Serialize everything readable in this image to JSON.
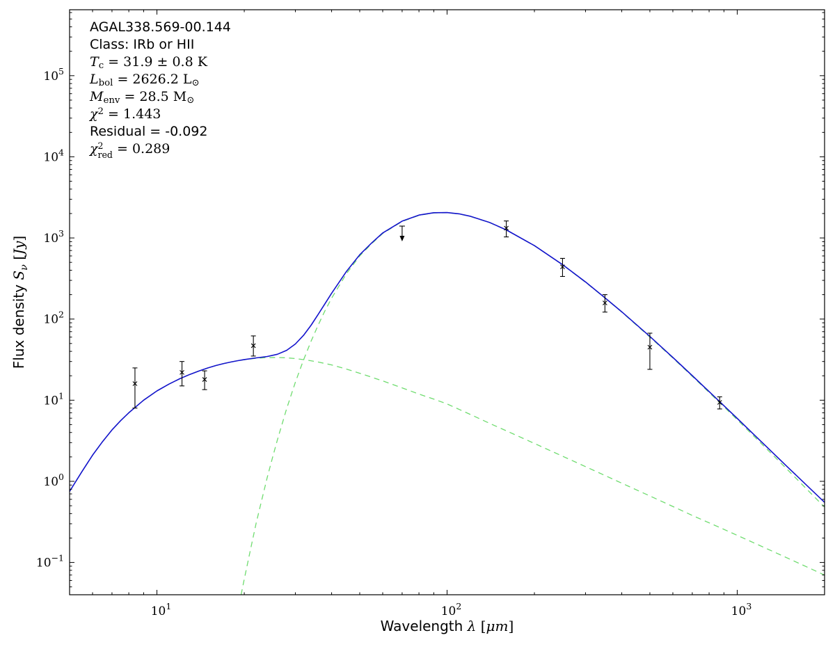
{
  "chart_data": {
    "type": "line",
    "source": "AGAL338.569-00.144",
    "x_scale": "log",
    "y_scale": "log",
    "grid": false,
    "legend": false,
    "frame_color": "#000000",
    "xlim": [
      5,
      2000
    ],
    "ylim": [
      0.04,
      650000
    ],
    "xlabel": {
      "text": "Wavelength λ [μm]",
      "segments": [
        {
          "t": "Wavelength ",
          "f": "sans"
        },
        {
          "t": "λ",
          "f": "it"
        },
        {
          "t": " [",
          "f": "rm"
        },
        {
          "t": "μm",
          "f": "it"
        },
        {
          "t": "]",
          "f": "rm"
        }
      ]
    },
    "ylabel": {
      "text": "Flux density Sν [Jy]",
      "segments": [
        {
          "t": "Flux density ",
          "f": "sans"
        },
        {
          "t": "S",
          "f": "it"
        },
        {
          "t": "ν",
          "f": "subit"
        },
        {
          "t": " [",
          "f": "rm"
        },
        {
          "t": "Jy",
          "f": "it"
        },
        {
          "t": "]",
          "f": "rm"
        }
      ]
    },
    "x_major_ticks": [
      {
        "value": 10,
        "exp": "1"
      },
      {
        "value": 100,
        "exp": "2"
      },
      {
        "value": 1000,
        "exp": "3"
      }
    ],
    "y_major_ticks": [
      {
        "value": 0.1,
        "exp": "−1"
      },
      {
        "value": 1,
        "exp": "0"
      },
      {
        "value": 10,
        "exp": "1"
      },
      {
        "value": 100,
        "exp": "2"
      },
      {
        "value": 1000,
        "exp": "3"
      },
      {
        "value": 10000,
        "exp": "4"
      },
      {
        "value": 100000,
        "exp": "5"
      }
    ],
    "series": [
      {
        "name": "total-fit",
        "color": "#1212cc",
        "style": "solid",
        "width": 1.6,
        "points": [
          [
            5,
            0.75
          ],
          [
            5.5,
            1.3
          ],
          [
            6,
            2.1
          ],
          [
            6.5,
            3.1
          ],
          [
            7,
            4.3
          ],
          [
            7.5,
            5.6
          ],
          [
            8,
            7.0
          ],
          [
            9,
            10.0
          ],
          [
            10,
            13.0
          ],
          [
            11,
            15.8
          ],
          [
            12,
            18.4
          ],
          [
            13,
            20.8
          ],
          [
            14,
            23.0
          ],
          [
            15,
            25.0
          ],
          [
            16,
            26.8
          ],
          [
            17,
            28.3
          ],
          [
            18,
            29.6
          ],
          [
            19,
            30.7
          ],
          [
            20,
            31.7
          ],
          [
            22,
            33.2
          ],
          [
            24,
            34.6
          ],
          [
            26,
            36.8
          ],
          [
            28,
            41.2
          ],
          [
            30,
            49.3
          ],
          [
            32,
            63
          ],
          [
            34,
            84
          ],
          [
            36,
            115
          ],
          [
            38,
            156
          ],
          [
            40,
            208
          ],
          [
            45,
            387
          ],
          [
            50,
            621
          ],
          [
            55,
            869
          ],
          [
            60,
            1151
          ],
          [
            70,
            1611
          ],
          [
            80,
            1912
          ],
          [
            90,
            2046
          ],
          [
            100,
            2056
          ],
          [
            110,
            1981
          ],
          [
            120,
            1854
          ],
          [
            140,
            1554
          ],
          [
            160,
            1257
          ],
          [
            200,
            805
          ],
          [
            250,
            469
          ],
          [
            300,
            287
          ],
          [
            350,
            183
          ],
          [
            400,
            123
          ],
          [
            500,
            61
          ],
          [
            600,
            33.6
          ],
          [
            700,
            20.1
          ],
          [
            870,
            9.6
          ],
          [
            1000,
            5.96
          ],
          [
            1200,
            3.18
          ],
          [
            1500,
            1.47
          ],
          [
            2000,
            0.55
          ]
        ]
      },
      {
        "name": "cold-dust-component",
        "color": "#6fdc6f",
        "style": "dashed",
        "width": 1.3,
        "points": [
          [
            19.5,
            0.04
          ],
          [
            20,
            0.062
          ],
          [
            21,
            0.143
          ],
          [
            22,
            0.31
          ],
          [
            23,
            0.6
          ],
          [
            24,
            1.12
          ],
          [
            25,
            1.94
          ],
          [
            26,
            3.23
          ],
          [
            28,
            7.9
          ],
          [
            30,
            16.7
          ],
          [
            32,
            31.3
          ],
          [
            34,
            53.5
          ],
          [
            36,
            85.3
          ],
          [
            38,
            128
          ],
          [
            40,
            181
          ],
          [
            45,
            363
          ],
          [
            50,
            600
          ],
          [
            55,
            850
          ],
          [
            60,
            1134
          ],
          [
            70,
            1597
          ],
          [
            80,
            1900
          ],
          [
            90,
            2036
          ],
          [
            100,
            2047
          ],
          [
            110,
            1973
          ],
          [
            120,
            1847
          ],
          [
            140,
            1549
          ],
          [
            160,
            1253
          ],
          [
            200,
            802
          ],
          [
            250,
            467
          ],
          [
            300,
            285
          ],
          [
            350,
            182
          ],
          [
            400,
            122
          ],
          [
            500,
            60
          ],
          [
            600,
            33.1
          ],
          [
            700,
            19.7
          ],
          [
            870,
            9.33
          ],
          [
            1000,
            5.74
          ],
          [
            1200,
            3.02
          ],
          [
            1500,
            1.36
          ],
          [
            2000,
            0.48
          ]
        ]
      },
      {
        "name": "warm-dust-component",
        "color": "#6fdc6f",
        "style": "dashed",
        "width": 1.3,
        "points": [
          [
            5,
            0.75
          ],
          [
            5.5,
            1.3
          ],
          [
            6,
            2.1
          ],
          [
            6.5,
            3.1
          ],
          [
            7,
            4.3
          ],
          [
            7.5,
            5.6
          ],
          [
            8,
            7.0
          ],
          [
            9,
            10.0
          ],
          [
            10,
            13.0
          ],
          [
            11,
            15.8
          ],
          [
            12,
            18.4
          ],
          [
            13,
            20.8
          ],
          [
            14,
            23.0
          ],
          [
            15,
            25.0
          ],
          [
            16,
            26.8
          ],
          [
            17,
            28.3
          ],
          [
            18,
            29.6
          ],
          [
            19,
            30.7
          ],
          [
            20,
            31.6
          ],
          [
            22,
            32.9
          ],
          [
            24,
            33.5
          ],
          [
            26,
            33.6
          ],
          [
            28,
            33.3
          ],
          [
            30,
            32.6
          ],
          [
            33,
            31.2
          ],
          [
            36,
            29.5
          ],
          [
            40,
            27.2
          ],
          [
            45,
            24.2
          ],
          [
            50,
            21.5
          ],
          [
            55,
            19.2
          ],
          [
            60,
            17.3
          ],
          [
            70,
            14.2
          ],
          [
            80,
            11.9
          ],
          [
            90,
            10.3
          ],
          [
            100,
            9.0
          ],
          [
            120,
            6.7
          ],
          [
            140,
            5.2
          ],
          [
            160,
            4.2
          ],
          [
            200,
            2.93
          ],
          [
            250,
            2.04
          ],
          [
            300,
            1.52
          ],
          [
            350,
            1.18
          ],
          [
            400,
            0.95
          ],
          [
            500,
            0.66
          ],
          [
            600,
            0.49
          ],
          [
            700,
            0.38
          ],
          [
            870,
            0.27
          ],
          [
            1000,
            0.216
          ],
          [
            1200,
            0.161
          ],
          [
            1500,
            0.112
          ],
          [
            2000,
            0.07
          ]
        ]
      }
    ],
    "data_points": {
      "marker": "x",
      "color": "#000000",
      "points": [
        {
          "x": 8.4,
          "flux": 16,
          "err_lo": 8,
          "err_hi": 9
        },
        {
          "x": 12.2,
          "flux": 22,
          "err_lo": 7,
          "err_hi": 8
        },
        {
          "x": 14.6,
          "flux": 18,
          "err_lo": 4.5,
          "err_hi": 5
        },
        {
          "x": 21.5,
          "flux": 47,
          "err_lo": 12,
          "err_hi": 15
        },
        {
          "x": 160,
          "flux": 1320,
          "err_lo": 290,
          "err_hi": 300
        },
        {
          "x": 250,
          "flux": 440,
          "err_lo": 105,
          "err_hi": 120
        },
        {
          "x": 350,
          "flux": 158,
          "err_lo": 36,
          "err_hi": 42
        },
        {
          "x": 500,
          "flux": 45,
          "err_lo": 21,
          "err_hi": 22
        },
        {
          "x": 870,
          "flux": 9.4,
          "err_lo": 1.6,
          "err_hi": 1.6
        }
      ],
      "upper_limits": [
        {
          "x": 70,
          "flux": 1400
        }
      ]
    },
    "annotation": {
      "lines": [
        {
          "text": "AGAL338.569-00.144",
          "segments": [
            {
              "t": "AGAL338.569-00.144",
              "f": "sans"
            }
          ]
        },
        {
          "text": "Class: IRb or HII",
          "segments": [
            {
              "t": "Class: IRb or HII",
              "f": "sans"
            }
          ]
        },
        {
          "text": "Tc = 31.9 ± 0.8 K",
          "segments": [
            {
              "t": "T",
              "f": "it"
            },
            {
              "t": "c",
              "f": "sub"
            },
            {
              "t": " = 31.9 ± 0.8 K",
              "f": "rm"
            }
          ]
        },
        {
          "text": "Lbol = 2626.2 L⊙",
          "segments": [
            {
              "t": "L",
              "f": "it"
            },
            {
              "t": "bol",
              "f": "sub"
            },
            {
              "t": " = 2626.2 L",
              "f": "rm"
            },
            {
              "t": "⊙",
              "f": "sub"
            }
          ]
        },
        {
          "text": "Menv = 28.5 M⊙",
          "segments": [
            {
              "t": "M",
              "f": "it"
            },
            {
              "t": "env",
              "f": "sub"
            },
            {
              "t": " = 28.5 M",
              "f": "rm"
            },
            {
              "t": "⊙",
              "f": "sub"
            }
          ]
        },
        {
          "text": "χ2 = 1.443",
          "segments": [
            {
              "t": "χ",
              "f": "it"
            },
            {
              "t": "2",
              "f": "sup"
            },
            {
              "t": " = 1.443",
              "f": "rm"
            }
          ]
        },
        {
          "text": "Residual = -0.092",
          "segments": [
            {
              "t": "Residual = -0.092",
              "f": "sans"
            }
          ]
        },
        {
          "text": "χ2red = 0.289",
          "segments": [
            {
              "t": "χ",
              "f": "it"
            },
            {
              "f": "stack",
              "sup": "2",
              "sub": "red"
            },
            {
              "t": " = 0.289",
              "f": "rm"
            }
          ]
        }
      ]
    }
  }
}
